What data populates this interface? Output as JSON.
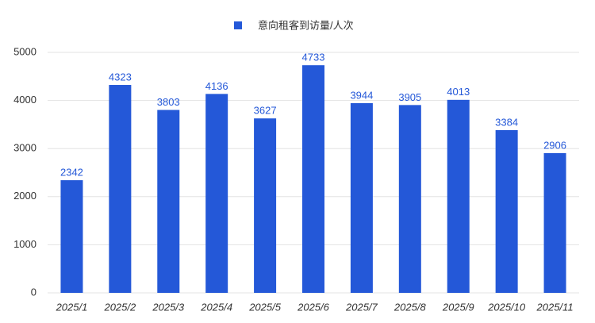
{
  "chart_data": {
    "type": "bar",
    "categories": [
      "2025/1",
      "2025/2",
      "2025/3",
      "2025/4",
      "2025/5",
      "2025/6",
      "2025/7",
      "2025/8",
      "2025/9",
      "2025/10",
      "2025/11"
    ],
    "series": [
      {
        "name": "意向租客到访量/人次",
        "color": "#2458d8",
        "values": [
          2342,
          4323,
          3803,
          4136,
          3627,
          4733,
          3944,
          3905,
          4013,
          3384,
          2906
        ]
      }
    ],
    "ylim": [
      0,
      5000
    ],
    "yticks": [
      0,
      1000,
      2000,
      3000,
      4000,
      5000
    ],
    "grid": true,
    "legend": "top"
  }
}
